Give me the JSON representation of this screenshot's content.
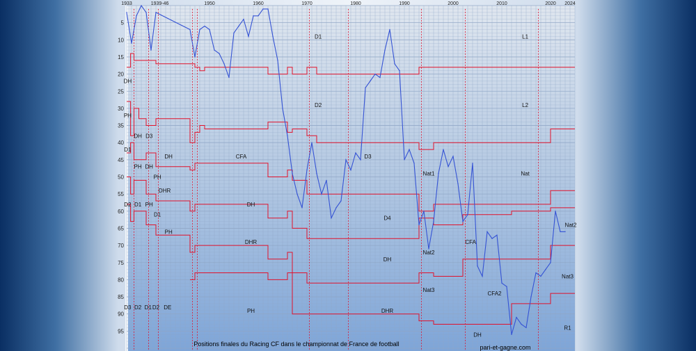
{
  "chart_data": {
    "type": "line",
    "title": "Positions finales du Racing CF dans le championnat de France de football",
    "credit": "pari-et-gagne.com",
    "x_range": [
      1933,
      2025
    ],
    "y_range": [
      0,
      100
    ],
    "y_inverted": true,
    "x_ticks": [
      "1933",
      "1939-46",
      "1950",
      "1960",
      "1970",
      "1980",
      "1990",
      "2000",
      "2010",
      "2020",
      "2024"
    ],
    "y_ticks": [
      5,
      10,
      15,
      20,
      25,
      30,
      35,
      40,
      45,
      50,
      55,
      60,
      65,
      70,
      75,
      80,
      85,
      90,
      95
    ],
    "grid": true,
    "series": [
      {
        "x": [
          1933,
          1934,
          1935,
          1936,
          1937,
          1938,
          1939,
          1946,
          1947,
          1948,
          1949,
          1950,
          1951,
          1952,
          1953,
          1954,
          1955,
          1956,
          1957,
          1958,
          1959,
          1960,
          1961,
          1962,
          1963,
          1964,
          1965,
          1966,
          1967,
          1968,
          1969,
          1970,
          1971,
          1972,
          1973,
          1974,
          1975,
          1976,
          1977,
          1978,
          1979,
          1980,
          1981,
          1982,
          1983,
          1984,
          1985,
          1986,
          1987,
          1988,
          1989,
          1990,
          1991,
          1992,
          1993,
          1994,
          1995,
          1996,
          1997,
          1998,
          1999,
          2000,
          2001,
          2002,
          2003,
          2004,
          2005,
          2006,
          2007,
          2008,
          2009,
          2010,
          2011,
          2012,
          2013,
          2014,
          2015,
          2016,
          2017,
          2018,
          2019,
          2020,
          2021,
          2022,
          2023
        ],
        "y": [
          2,
          11,
          3,
          0,
          2,
          13,
          2,
          7,
          15,
          7,
          6,
          7,
          13,
          14,
          17,
          21,
          8,
          6,
          4,
          9,
          3,
          3,
          1,
          1,
          9,
          16,
          30,
          38,
          49,
          55,
          59,
          48,
          40,
          49,
          55,
          51,
          62,
          59,
          57,
          45,
          48,
          43,
          45,
          24,
          22,
          20,
          21,
          13,
          7,
          17,
          19,
          45,
          42,
          46,
          64,
          60,
          71,
          63,
          49,
          42,
          47,
          44,
          52,
          63,
          61,
          46,
          76,
          79,
          66,
          68,
          67,
          81,
          82,
          96,
          91,
          93,
          94,
          85,
          78,
          79,
          77,
          75,
          60,
          66,
          66
        ]
      }
    ],
    "level_bands": {
      "1933-1939": [
        "DH",
        "PH",
        "D1",
        "D2",
        "D3"
      ],
      "1947-2024": [
        "D1",
        "D2",
        "CFA",
        "DH",
        "DHR",
        "PH"
      ],
      "1971-1992": [
        "D1",
        "D2",
        "D3",
        "D4",
        "DH",
        "DHR"
      ],
      "1993-2002": [
        "D1",
        "D2",
        "Nat1",
        "Nat2",
        "Nat3"
      ],
      "2003-2024": [
        "L1",
        "L2",
        "Nat",
        "CFA",
        "CFA2",
        "DH",
        "Nat2",
        "Nat3",
        "R1"
      ]
    },
    "level_labels": [
      {
        "text": "DH",
        "x": 1933.2,
        "y": 22
      },
      {
        "text": "PH",
        "x": 1933.2,
        "y": 32
      },
      {
        "text": "D1",
        "x": 1933.2,
        "y": 42
      },
      {
        "text": "D2",
        "x": 1933.2,
        "y": 58
      },
      {
        "text": "D3",
        "x": 1933.2,
        "y": 88
      },
      {
        "text": "DH",
        "x": 1935.3,
        "y": 38
      },
      {
        "text": "PH",
        "x": 1935.3,
        "y": 47
      },
      {
        "text": "D1",
        "x": 1935.3,
        "y": 58
      },
      {
        "text": "D2",
        "x": 1935.3,
        "y": 88
      },
      {
        "text": "D3",
        "x": 1937.6,
        "y": 38
      },
      {
        "text": "DH",
        "x": 1937.6,
        "y": 47
      },
      {
        "text": "PH",
        "x": 1937.6,
        "y": 58
      },
      {
        "text": "D1",
        "x": 1937.4,
        "y": 88
      },
      {
        "text": "D2",
        "x": 1939.0,
        "y": 88
      },
      {
        "text": "PH",
        "x": 1939.3,
        "y": 50
      },
      {
        "text": "D1",
        "x": 1939.3,
        "y": 61
      },
      {
        "text": "DHR",
        "x": 1940.8,
        "y": 54
      },
      {
        "text": "DH",
        "x": 1941.6,
        "y": 44
      },
      {
        "text": "PH",
        "x": 1941.6,
        "y": 66
      },
      {
        "text": "DE",
        "x": 1941.4,
        "y": 88
      },
      {
        "text": "D1",
        "x": 1972.3,
        "y": 9
      },
      {
        "text": "D2",
        "x": 1972.3,
        "y": 29
      },
      {
        "text": "CFA",
        "x": 1956.5,
        "y": 44
      },
      {
        "text": "DH",
        "x": 1958.5,
        "y": 58
      },
      {
        "text": "DHR",
        "x": 1958.5,
        "y": 69
      },
      {
        "text": "PH",
        "x": 1958.5,
        "y": 89
      },
      {
        "text": "D3",
        "x": 1982.5,
        "y": 44
      },
      {
        "text": "D4",
        "x": 1986.5,
        "y": 62
      },
      {
        "text": "DH",
        "x": 1986.5,
        "y": 74
      },
      {
        "text": "DHR",
        "x": 1986.5,
        "y": 89
      },
      {
        "text": "Nat1",
        "x": 1995.0,
        "y": 49
      },
      {
        "text": "Nat2",
        "x": 1995.0,
        "y": 72
      },
      {
        "text": "Nat3",
        "x": 1995.0,
        "y": 83
      },
      {
        "text": "L1",
        "x": 2014.8,
        "y": 9
      },
      {
        "text": "L2",
        "x": 2014.8,
        "y": 29
      },
      {
        "text": "Nat",
        "x": 2014.8,
        "y": 49
      },
      {
        "text": "CFA",
        "x": 2003.6,
        "y": 69
      },
      {
        "text": "CFA2",
        "x": 2008.5,
        "y": 84
      },
      {
        "text": "DH",
        "x": 2005.0,
        "y": 96
      },
      {
        "text": "Nat2",
        "x": 2025.0,
        "y": 64
      },
      {
        "text": "Nat3",
        "x": 2023.5,
        "y": 79
      },
      {
        "text": "R1",
        "x": 2023.5,
        "y": 94
      }
    ],
    "colors": {
      "series": "#3553d4",
      "boundaries": "#e0112b",
      "grid": "#8fa6c6",
      "band_top": "#dfe6ef",
      "band_bottom": "#7ea5d8"
    }
  }
}
